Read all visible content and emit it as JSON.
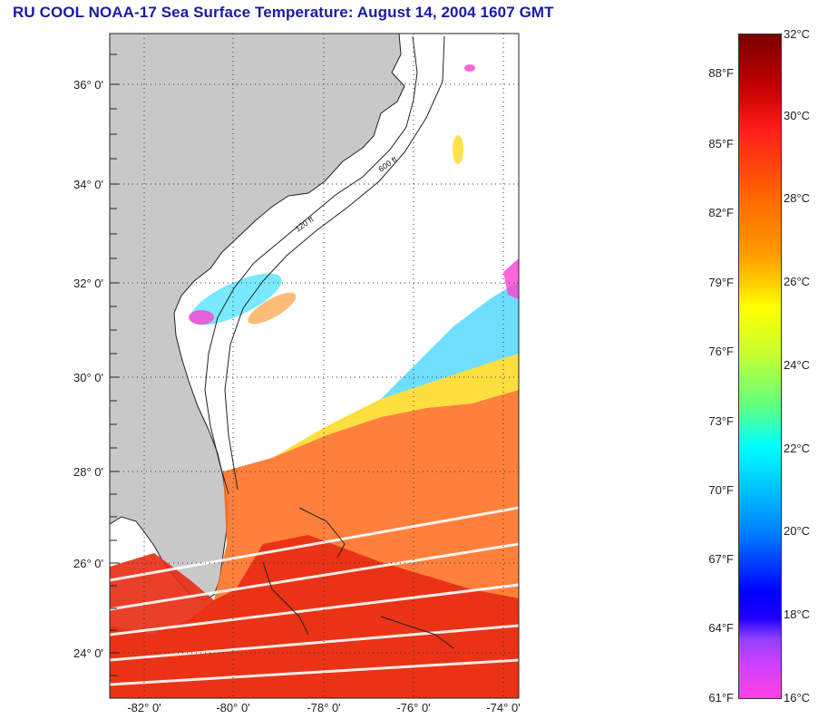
{
  "title": "RU COOL  NOAA-17  Sea Surface Temperature:  August 14, 2004 1607 GMT",
  "map": {
    "lat_labels": [
      "36° 0'",
      "34° 0'",
      "32° 0'",
      "30° 0'",
      "28° 0'",
      "26° 0'",
      "24° 0'"
    ],
    "lon_labels": [
      "-82° 0'",
      "-80° 0'",
      "-78° 0'",
      "-76° 0'",
      "-74° 0'"
    ],
    "land_color": "#c8c8c8",
    "ocean_color": "#ffffff",
    "contour_labels": [
      "120 ft",
      "600 ft"
    ]
  },
  "colorbar": {
    "fahrenheit": [
      "88°F",
      "85°F",
      "82°F",
      "79°F",
      "76°F",
      "73°F",
      "70°F",
      "67°F",
      "64°F",
      "61°F"
    ],
    "celsius": [
      "32°C",
      "30°C",
      "28°C",
      "26°C",
      "24°C",
      "22°C",
      "20°C",
      "18°C",
      "16°C"
    ],
    "range_c": [
      16,
      32
    ],
    "range_f": [
      61,
      89.6
    ]
  }
}
